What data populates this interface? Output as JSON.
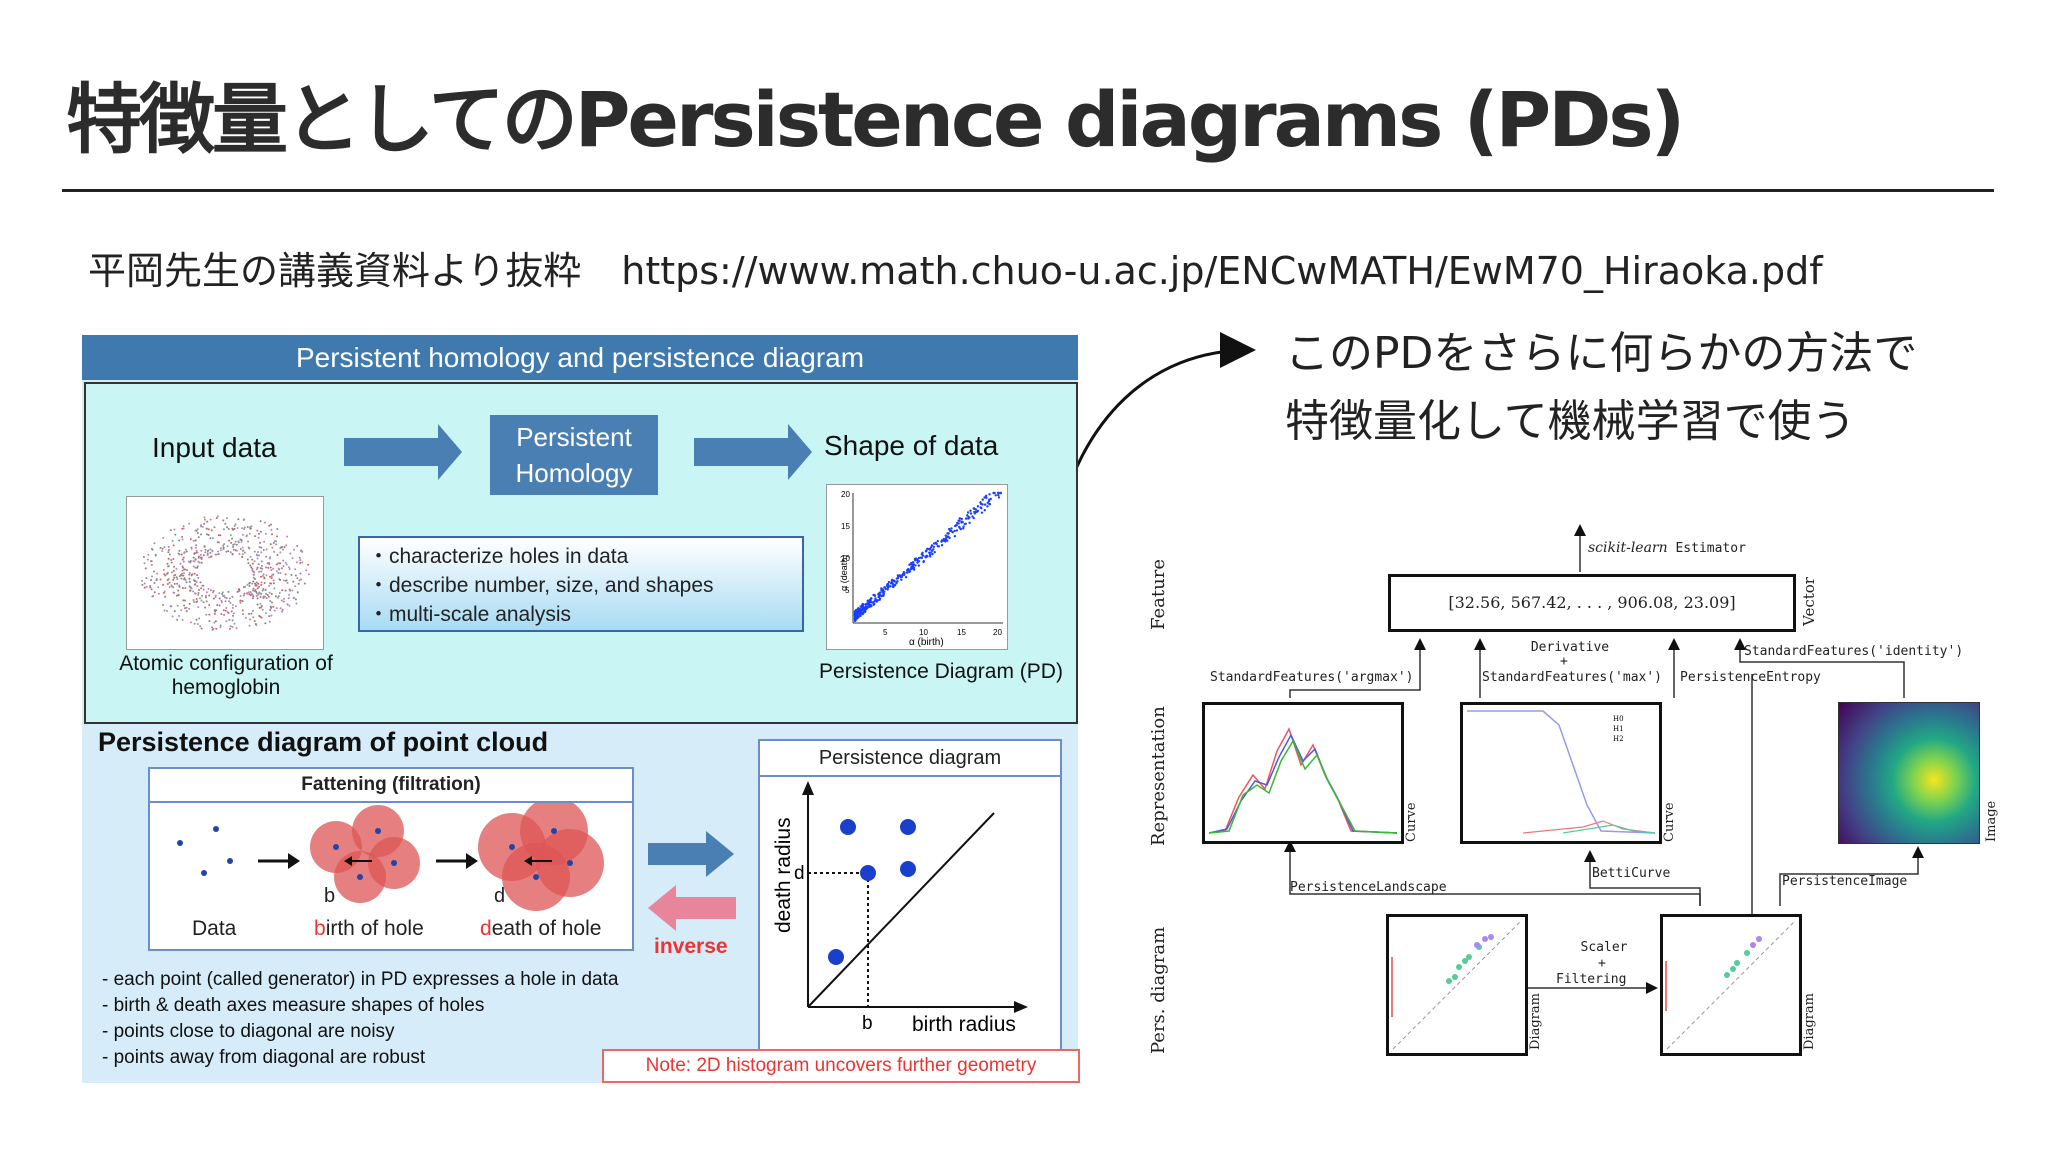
{
  "slide": {
    "title": "特徴量としてのPersistence diagrams (PDs)",
    "source_label": "平岡先生の講義資料より抜粋",
    "source_url": "https://www.math.chuo-u.ac.jp/ENCwMATH/EwM70_Hiraoka.pdf",
    "comment_line1": "このPDをさらに何らかの方法で",
    "comment_line2": "特徴量化して機械学習で使う"
  },
  "left_figure": {
    "header": "Persistent homology and persistence diagram",
    "input_label": "Input data",
    "ph_line1": "Persistent",
    "ph_line2": "Homology",
    "shape_label": "Shape of data",
    "bullets": [
      "・characterize holes in data",
      "・describe number, size, and shapes",
      "・multi-scale analysis"
    ],
    "atoms_caption_line1": "Atomic configuration of",
    "atoms_caption_line2": "hemoglobin",
    "pd_caption": "Persistence Diagram (PD)",
    "pd_small_ylabel": "α (death)",
    "pd_small_xlabel": "α (birth)",
    "pd_small_ticks": [
      "5",
      "10",
      "15",
      "20"
    ],
    "pd_small_yticks": [
      "20",
      "15",
      "10",
      "5"
    ],
    "bottom_title": "Persistence diagram of point cloud",
    "fatten_title": "Fattening (filtration)",
    "data_label": "Data",
    "birth_label_b": "b",
    "birth_label_rest": "irth of hole",
    "death_label_d": "d",
    "death_label_rest": "eath of hole",
    "marker_b": "b",
    "marker_d": "d",
    "inverse_label": "inverse",
    "pd_title": "Persistence diagram",
    "pd_ylabel": "death radius",
    "pd_xlabel": "birth radius",
    "pd_b": "b",
    "pd_d": "d",
    "notes": [
      "- each point (called generator) in PD expresses a hole in data",
      "- birth & death axes measure shapes of holes",
      "- points close to diagonal are noisy",
      "- points away from diagonal are robust"
    ],
    "note_red": "Note: 2D histogram uncovers further geometry"
  },
  "right_figure": {
    "row_feature": "Feature",
    "row_representation": "Representation",
    "row_pers_diagram": "Pers. diagram",
    "estimator_italic": "scikit-learn",
    "estimator_mono": " Estimator",
    "vector_text": "[32.56, 567.42, . . . , 906.08, 23.09]",
    "vector_label": "Vector",
    "sf_argmax": "StandardFeatures('argmax')",
    "derivative": "Derivative",
    "plus": "+",
    "sf_max": "StandardFeatures('max')",
    "pers_entropy": "PersistenceEntropy",
    "sf_identity": "StandardFeatures('identity')",
    "curve_label": "Curve",
    "image_label": "Image",
    "pers_landscape": "PersistenceLandscape",
    "betti_curve": "BettiCurve",
    "pers_image": "PersistenceImage",
    "scaler": "Scaler",
    "filtering": "Filtering",
    "diagram_label": "Diagram",
    "legend": [
      "H0",
      "H1",
      "H2"
    ]
  }
}
